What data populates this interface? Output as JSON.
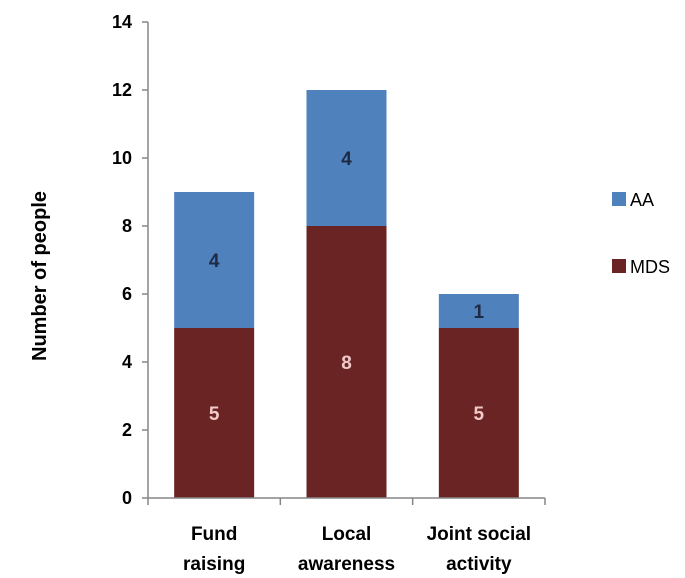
{
  "chart_data": {
    "type": "bar",
    "stacked": true,
    "categories": [
      [
        "Fund",
        "raising"
      ],
      [
        "Local",
        "awareness"
      ],
      [
        "Joint social",
        "activity"
      ]
    ],
    "series": [
      {
        "name": "MDS",
        "values": [
          5,
          8,
          5
        ],
        "color": "#6B2424",
        "label_color": "#F2C9C9"
      },
      {
        "name": "AA",
        "values": [
          4,
          4,
          1
        ],
        "color": "#4F81BD",
        "label_color": "#1F2A44"
      }
    ],
    "ylabel": "Number of people",
    "xlabel": "",
    "ylim": [
      0,
      14
    ],
    "yticks": [
      0,
      2,
      4,
      6,
      8,
      10,
      12,
      14
    ],
    "grid": false,
    "legend_position": "right",
    "legend_order": [
      "AA",
      "MDS"
    ]
  }
}
